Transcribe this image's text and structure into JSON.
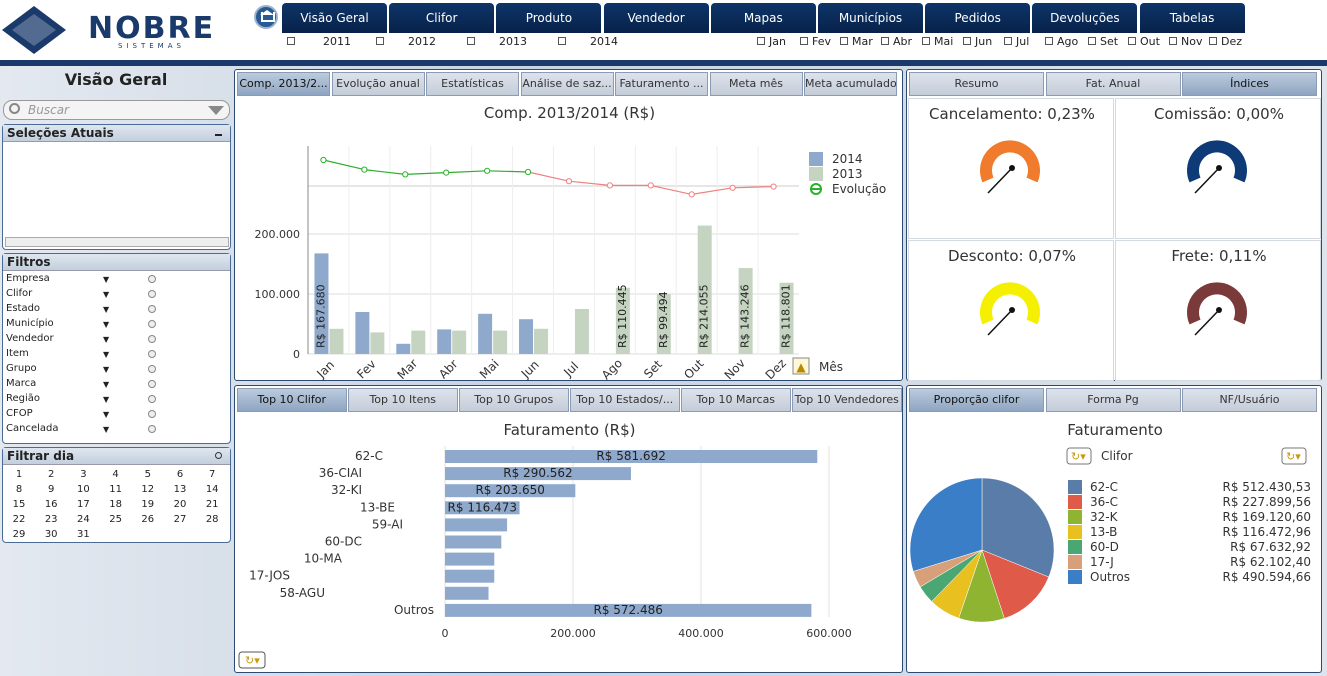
{
  "app": {
    "logo_text": "NOBRE",
    "logo_sub": "SISTEMAS"
  },
  "nav": {
    "tabs": [
      "Visão Geral",
      "Clifor",
      "Produto",
      "Vendedor",
      "Mapas",
      "Municípios",
      "Pedidos",
      "Devoluções",
      "Tabelas"
    ]
  },
  "years": [
    "2011",
    "2012",
    "2013",
    "2014"
  ],
  "months": [
    "Jan",
    "Fev",
    "Mar",
    "Abr",
    "Mai",
    "Jun",
    "Jul",
    "Ago",
    "Set",
    "Out",
    "Nov",
    "Dez"
  ],
  "sidebar": {
    "title": "Visão Geral",
    "search_placeholder": "Buscar",
    "selections_title": "Seleções Atuais",
    "filters_title": "Filtros",
    "filters": [
      "Empresa",
      "Clifor",
      "Estado",
      "Município",
      "Vendedor",
      "Item",
      "Grupo",
      "Marca",
      "Região",
      "CFOP",
      "Cancelada"
    ],
    "days_title": "Filtrar dia",
    "days": [
      "1",
      "2",
      "3",
      "4",
      "5",
      "6",
      "7",
      "8",
      "9",
      "10",
      "11",
      "12",
      "13",
      "14",
      "15",
      "16",
      "17",
      "18",
      "19",
      "20",
      "21",
      "22",
      "23",
      "24",
      "25",
      "26",
      "27",
      "28",
      "29",
      "30",
      "31"
    ]
  },
  "top_left": {
    "tabs": [
      "Comp. 2013/2...",
      "Evolução anual",
      "Estatísticas",
      "Análise de saz...",
      "Faturamento ...",
      "Meta mês",
      "Meta acumulado"
    ],
    "title": "Comp. 2013/2014 (R$)",
    "xlabel": "Mês",
    "legend": [
      "2014",
      "2013",
      "Evolução"
    ]
  },
  "top_right": {
    "tabs": [
      "Resumo",
      "Fat. Anual",
      "Índices"
    ],
    "gauges": [
      {
        "label": "Cancelamento: 0,23%",
        "color": "#f07b2c",
        "value": 0.23
      },
      {
        "label": "Comissão: 0,00%",
        "color": "#0e3a78",
        "value": 0.0
      },
      {
        "label": "Desconto: 0,07%",
        "color": "#f4f000",
        "value": 0.07
      },
      {
        "label": "Frete: 0,11%",
        "color": "#7a3a3a",
        "value": 0.11
      }
    ]
  },
  "bottom_left": {
    "tabs": [
      "Top 10 Clifor",
      "Top 10 Itens",
      "Top 10 Grupos",
      "Top 10 Estados/...",
      "Top 10 Marcas",
      "Top 10 Vendedores"
    ],
    "title": "Faturamento (R$)"
  },
  "bottom_right": {
    "tabs": [
      "Proporção clifor",
      "Forma Pg",
      "NF/Usuário"
    ],
    "title": "Faturamento",
    "legend_title": "Clifor"
  },
  "chart_data": [
    {
      "type": "bar",
      "title": "Comp. 2013/2014 (R$)",
      "xlabel": "Mês",
      "ylabel": "",
      "categories": [
        "Jan",
        "Fev",
        "Mar",
        "Abr",
        "Mai",
        "Jun",
        "Jul",
        "Ago",
        "Set",
        "Out",
        "Nov",
        "Dez"
      ],
      "ylim": [
        0,
        300000
      ],
      "yticks": [
        "0",
        "100.000",
        "200.000"
      ],
      "series": [
        {
          "name": "2014",
          "color": "#8fa9cc",
          "values": [
            167680,
            70000,
            17000,
            41000,
            67000,
            58000,
            null,
            null,
            null,
            null,
            null,
            null
          ]
        },
        {
          "name": "2013",
          "color": "#c5d3c1",
          "values": [
            42000,
            36000,
            39000,
            39000,
            39000,
            42000,
            75000,
            110445,
            99494,
            214055,
            143246,
            118801
          ]
        },
        {
          "name": "Evolução",
          "type": "line",
          "values": [
            320000,
            304000,
            296000,
            299000,
            302000,
            300000,
            288000,
            281000,
            281000,
            266000,
            277000,
            279000
          ]
        }
      ],
      "data_labels": [
        {
          "cat": "Jan",
          "text": "R$ 167.680"
        },
        {
          "cat": "Ago",
          "text": "R$ 110.445"
        },
        {
          "cat": "Set",
          "text": "R$ 99.494"
        },
        {
          "cat": "Out",
          "text": "R$ 214.055"
        },
        {
          "cat": "Nov",
          "text": "R$ 143.246"
        },
        {
          "cat": "Dez",
          "text": "R$ 118.801"
        }
      ]
    },
    {
      "type": "bar",
      "orientation": "horizontal",
      "title": "Faturamento (R$)",
      "categories": [
        "62-C",
        "36-CIAI",
        "32-KI",
        "13-BE",
        "59-AI",
        "60-DC",
        "10-MA",
        "17-JOS",
        "58-AGU",
        "Outros"
      ],
      "values": [
        581692,
        290562,
        203650,
        116473,
        97000,
        88000,
        77000,
        77000,
        68000,
        572486
      ],
      "labels": [
        "R$ 581.692",
        "R$ 290.562",
        "R$ 203.650",
        "R$ 116.473",
        "",
        "",
        "",
        "",
        "",
        "R$ 572.486"
      ],
      "xlim": [
        0,
        600000
      ],
      "xticks": [
        "0",
        "200.000",
        "400.000",
        "600.000"
      ],
      "color": "#8fa9cc"
    },
    {
      "type": "pie",
      "title": "Faturamento",
      "categories": [
        "62-C",
        "36-C",
        "32-K",
        "13-B",
        "60-D",
        "17-J",
        "Outros"
      ],
      "values": [
        512430.53,
        227899.56,
        169120.6,
        116472.96,
        67632.92,
        62102.4,
        490594.66
      ],
      "labels": [
        "R$ 512.430,53",
        "R$ 227.899,56",
        "R$ 169.120,60",
        "R$ 116.472,96",
        "R$ 67.632,92",
        "R$ 62.102,40",
        "R$ 490.594,66"
      ],
      "colors": [
        "#5a7ca8",
        "#e05a4a",
        "#8fb432",
        "#e8c020",
        "#4aa672",
        "#d8a07a",
        "#3a7ec8"
      ]
    }
  ]
}
